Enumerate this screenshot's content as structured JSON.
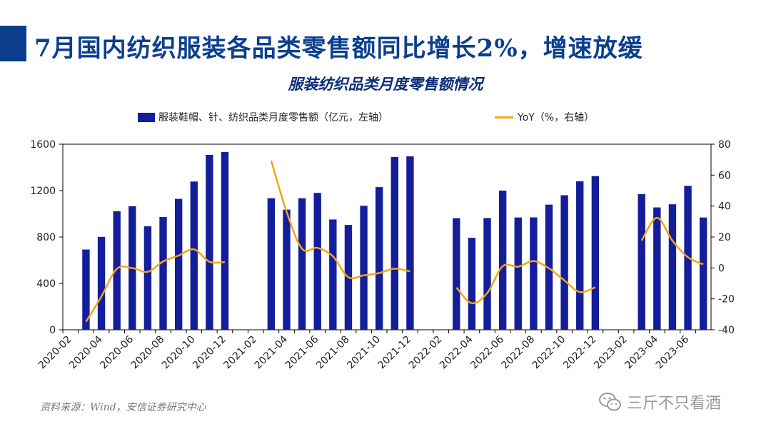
{
  "header": {
    "title": "7月国内纺织服装各品类零售额同比增长2%，增速放缓",
    "subtitle": "服装纺织品类月度零售额情况"
  },
  "footer": {
    "source": "资料来源：Wind，安信证券研究中心",
    "watermark": "三斤不只看酒",
    "watermark_icon": "wechat-icon"
  },
  "colors": {
    "bar": "#141e9b",
    "line": "#f5a318",
    "accent": "#0b3f8e"
  },
  "chart_data": {
    "type": "bar",
    "title": "服装纺织品类月度零售额情况",
    "categories": [
      "2020-02",
      "2020-03",
      "2020-04",
      "2020-05",
      "2020-06",
      "2020-07",
      "2020-08",
      "2020-09",
      "2020-10",
      "2020-11",
      "2020-12",
      "2021-01",
      "2021-02",
      "2021-03",
      "2021-04",
      "2021-05",
      "2021-06",
      "2021-07",
      "2021-08",
      "2021-09",
      "2021-10",
      "2021-11",
      "2021-12",
      "2022-01",
      "2022-02",
      "2022-03",
      "2022-04",
      "2022-05",
      "2022-06",
      "2022-07",
      "2022-08",
      "2022-09",
      "2022-10",
      "2022-11",
      "2022-12",
      "2023-01",
      "2023-02",
      "2023-03",
      "2023-04",
      "2023-05",
      "2023-06",
      "2023-07"
    ],
    "x_tick_labels": [
      "2020-02",
      "2020-04",
      "2020-06",
      "2020-08",
      "2020-10",
      "2020-12",
      "2021-02",
      "2021-04",
      "2021-06",
      "2021-08",
      "2021-10",
      "2021-12",
      "2022-02",
      "2022-04",
      "2022-06",
      "2022-08",
      "2022-10",
      "2022-12",
      "2023-02",
      "2023-04",
      "2023-06"
    ],
    "series": [
      {
        "name": "服装鞋帽、针、纺织品类月度零售额（亿元，左轴）",
        "type": "bar",
        "axis": "left",
        "values": [
          null,
          692,
          801,
          1022,
          1065,
          892,
          972,
          1129,
          1278,
          1508,
          1533,
          null,
          null,
          1134,
          1036,
          1134,
          1180,
          951,
          904,
          1069,
          1230,
          1490,
          1495,
          null,
          null,
          962,
          793,
          963,
          1200,
          968,
          969,
          1079,
          1160,
          1280,
          1325,
          null,
          null,
          1169,
          1055,
          1082,
          1241,
          968
        ]
      },
      {
        "name": "YoY（%，右轴）",
        "type": "line",
        "axis": "right",
        "values": [
          null,
          -34.8,
          -18.5,
          -0.6,
          -0.1,
          -2.5,
          4.2,
          8.0,
          12.0,
          4.0,
          3.8,
          null,
          null,
          69.4,
          36.3,
          12.4,
          13.0,
          7.5,
          -6.0,
          -4.8,
          -3.3,
          -0.5,
          -2.2,
          null,
          null,
          -12.7,
          -22.8,
          -16.2,
          1.1,
          0.8,
          4.4,
          -0.3,
          -8.1,
          -15.6,
          -12.5,
          null,
          null,
          17.7,
          32.4,
          17.6,
          6.9,
          2.3
        ]
      }
    ],
    "y_left": {
      "min": 0,
      "max": 1600,
      "ticks": [
        0,
        400,
        800,
        1200,
        1600
      ]
    },
    "y_right": {
      "min": -40,
      "max": 80,
      "ticks": [
        -40,
        -20,
        0,
        20,
        40,
        60,
        80
      ]
    },
    "legend_position": "top"
  }
}
